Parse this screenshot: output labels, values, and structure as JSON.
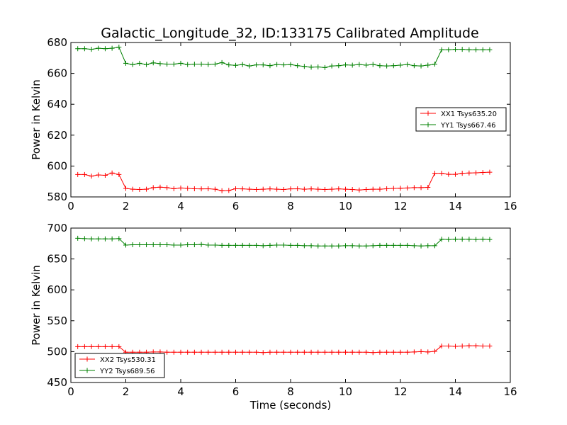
{
  "figure": {
    "title": "Galactic_Longitude_32, ID:133175 Calibrated Amplitude"
  },
  "chart_data": [
    {
      "type": "line",
      "title": "Galactic_Longitude_32, ID:133175 Calibrated Amplitude",
      "xlabel": "",
      "ylabel": "Power in Kelvin",
      "xlim": [
        0,
        16
      ],
      "ylim": [
        580,
        680
      ],
      "xticks": [
        0,
        2,
        4,
        6,
        8,
        10,
        12,
        14,
        16
      ],
      "yticks": [
        580,
        600,
        620,
        640,
        660,
        680
      ],
      "grid": false,
      "legend": "center-right",
      "x": [
        0.25,
        0.5,
        0.75,
        1.0,
        1.25,
        1.5,
        1.75,
        2.0,
        2.25,
        2.5,
        2.75,
        3.0,
        3.25,
        3.5,
        3.75,
        4.0,
        4.25,
        4.5,
        4.75,
        5.0,
        5.25,
        5.5,
        5.75,
        6.0,
        6.25,
        6.5,
        6.75,
        7.0,
        7.25,
        7.5,
        7.75,
        8.0,
        8.25,
        8.5,
        8.75,
        9.0,
        9.25,
        9.5,
        9.75,
        10.0,
        10.25,
        10.5,
        10.75,
        11.0,
        11.25,
        11.5,
        11.75,
        12.0,
        12.25,
        12.5,
        12.75,
        13.0,
        13.25,
        13.5,
        13.75,
        14.0,
        14.25,
        14.5,
        14.75,
        15.0,
        15.25
      ],
      "series": [
        {
          "name": "XX1 Tsys635.20",
          "color": "#ff0000",
          "values": [
            594.5,
            594.5,
            593.5,
            594.2,
            594.0,
            595.5,
            594.5,
            585.5,
            585.0,
            584.8,
            585.0,
            586.0,
            586.3,
            586.0,
            585.3,
            585.8,
            585.5,
            585.3,
            585.2,
            585.3,
            585.0,
            584.0,
            584.2,
            585.3,
            585.2,
            585.0,
            584.8,
            585.0,
            585.2,
            585.0,
            584.8,
            585.2,
            585.3,
            585.0,
            585.2,
            585.0,
            584.8,
            585.0,
            585.2,
            585.0,
            584.8,
            584.5,
            584.8,
            585.0,
            585.0,
            585.3,
            585.5,
            585.6,
            585.8,
            586.0,
            586.0,
            586.2,
            595.3,
            595.3,
            594.6,
            594.6,
            595.3,
            595.5,
            595.6,
            595.8,
            596.0
          ]
        },
        {
          "name": "YY1 Tsys667.46",
          "color": "#008000",
          "values": [
            676.0,
            676.0,
            675.6,
            676.3,
            676.0,
            676.3,
            677.0,
            666.5,
            665.7,
            666.5,
            665.7,
            666.8,
            666.3,
            666.0,
            666.0,
            666.5,
            665.7,
            666.0,
            666.0,
            665.8,
            666.0,
            667.0,
            665.5,
            665.2,
            665.7,
            664.8,
            665.5,
            665.5,
            665.0,
            665.8,
            665.5,
            665.7,
            665.0,
            664.5,
            664.0,
            664.2,
            663.8,
            664.8,
            665.0,
            665.5,
            665.3,
            665.8,
            665.3,
            665.8,
            665.0,
            664.8,
            665.0,
            665.3,
            665.8,
            665.0,
            664.8,
            665.3,
            666.0,
            675.3,
            675.3,
            675.6,
            675.6,
            675.3,
            675.3,
            675.3,
            675.3
          ]
        }
      ]
    },
    {
      "type": "line",
      "title": "",
      "xlabel": "Time (seconds)",
      "ylabel": "Power in Kelvin",
      "xlim": [
        0,
        16
      ],
      "ylim": [
        450,
        700
      ],
      "xticks": [
        0,
        2,
        4,
        6,
        8,
        10,
        12,
        14,
        16
      ],
      "yticks": [
        450,
        500,
        550,
        600,
        650,
        700
      ],
      "grid": false,
      "legend": "lower-left",
      "x": [
        0.25,
        0.5,
        0.75,
        1.0,
        1.25,
        1.5,
        1.75,
        2.0,
        2.25,
        2.5,
        2.75,
        3.0,
        3.25,
        3.5,
        3.75,
        4.0,
        4.25,
        4.5,
        4.75,
        5.0,
        5.25,
        5.5,
        5.75,
        6.0,
        6.25,
        6.5,
        6.75,
        7.0,
        7.25,
        7.5,
        7.75,
        8.0,
        8.25,
        8.5,
        8.75,
        9.0,
        9.25,
        9.5,
        9.75,
        10.0,
        10.25,
        10.5,
        10.75,
        11.0,
        11.25,
        11.5,
        11.75,
        12.0,
        12.25,
        12.5,
        12.75,
        13.0,
        13.25,
        13.5,
        13.75,
        14.0,
        14.25,
        14.5,
        14.75,
        15.0,
        15.25
      ],
      "series": [
        {
          "name": "XX2 Tsys530.31",
          "color": "#ff0000",
          "values": [
            508.0,
            508.0,
            508.0,
            508.0,
            508.0,
            508.0,
            508.0,
            499.0,
            499.0,
            499.0,
            499.0,
            499.5,
            499.5,
            499.0,
            499.0,
            499.0,
            499.0,
            499.0,
            499.0,
            499.0,
            499.0,
            499.0,
            499.0,
            499.0,
            499.0,
            499.0,
            499.0,
            498.5,
            499.0,
            499.0,
            499.0,
            499.0,
            499.0,
            499.0,
            499.0,
            499.0,
            499.0,
            499.0,
            499.0,
            499.0,
            499.0,
            499.0,
            499.0,
            498.5,
            499.0,
            499.0,
            499.0,
            499.0,
            499.0,
            499.5,
            500.0,
            499.5,
            500.5,
            509.0,
            509.0,
            508.5,
            509.0,
            509.5,
            509.5,
            509.0,
            509.0
          ]
        },
        {
          "name": "YY2 Tsys689.56",
          "color": "#008000",
          "values": [
            683.5,
            683.0,
            682.5,
            682.5,
            682.5,
            682.5,
            683.0,
            672.5,
            673.0,
            673.0,
            673.0,
            673.0,
            673.0,
            673.0,
            672.5,
            672.5,
            673.0,
            673.0,
            673.5,
            672.5,
            672.5,
            672.0,
            672.0,
            672.0,
            672.0,
            672.0,
            672.0,
            671.5,
            672.0,
            672.5,
            672.5,
            672.0,
            672.0,
            671.5,
            671.5,
            671.0,
            671.0,
            671.0,
            671.0,
            671.5,
            671.5,
            671.0,
            671.0,
            671.5,
            672.0,
            672.0,
            672.0,
            672.0,
            672.0,
            671.5,
            671.0,
            671.5,
            671.5,
            682.0,
            681.5,
            682.0,
            682.0,
            682.0,
            681.5,
            682.0,
            681.5
          ]
        }
      ]
    }
  ]
}
